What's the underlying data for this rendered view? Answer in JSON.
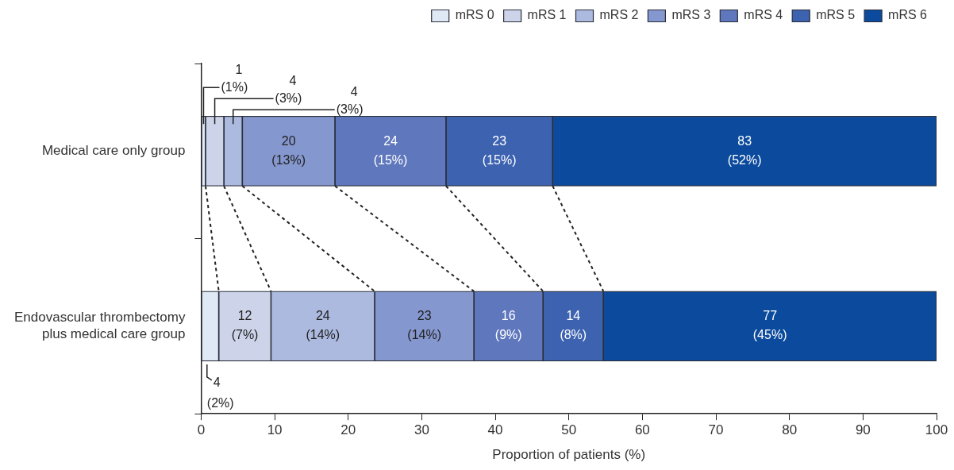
{
  "chart_data": {
    "type": "bar",
    "orientation": "horizontal",
    "stacked": true,
    "categories": [
      "Medical care only group",
      "Endovascular thrombectomy plus medical care group"
    ],
    "series": [
      {
        "name": "mRS 0",
        "color": "#dfe8f5",
        "values": [
          0.6,
          2.4
        ],
        "value_labels": [
          "1\n(1%)",
          "4\n(2%)"
        ]
      },
      {
        "name": "mRS 1",
        "color": "#cdd4ea",
        "values": [
          2.5,
          7.1
        ],
        "value_labels": [
          "4\n(3%)",
          "12\n(7%)"
        ]
      },
      {
        "name": "mRS 2",
        "color": "#adbadf",
        "values": [
          2.5,
          14.1
        ],
        "value_labels": [
          "4\n(3%)",
          "24\n(14%)"
        ]
      },
      {
        "name": "mRS 3",
        "color": "#8597cf",
        "values": [
          12.6,
          13.5
        ],
        "value_labels": [
          "20\n(13%)",
          "23\n(14%)"
        ]
      },
      {
        "name": "mRS 4",
        "color": "#5f77bd",
        "values": [
          15.1,
          9.4
        ],
        "value_labels": [
          "24\n(15%)",
          "16\n(9%)"
        ]
      },
      {
        "name": "mRS 5",
        "color": "#3d62b0",
        "values": [
          14.5,
          8.2
        ],
        "value_labels": [
          "23\n(15%)",
          "14\n(8%)"
        ]
      },
      {
        "name": "mRS 6",
        "color": "#0b4a9c",
        "values": [
          52.2,
          45.3
        ],
        "value_labels": [
          "83\n(52%)",
          "77\n(45%)"
        ]
      }
    ],
    "xlabel": "Proportion of patients (%)",
    "xlim": [
      0,
      100
    ],
    "xticks": [
      0,
      10,
      20,
      30,
      40,
      50,
      60,
      70,
      80,
      90,
      100
    ],
    "legend": "top right",
    "grid": false
  }
}
